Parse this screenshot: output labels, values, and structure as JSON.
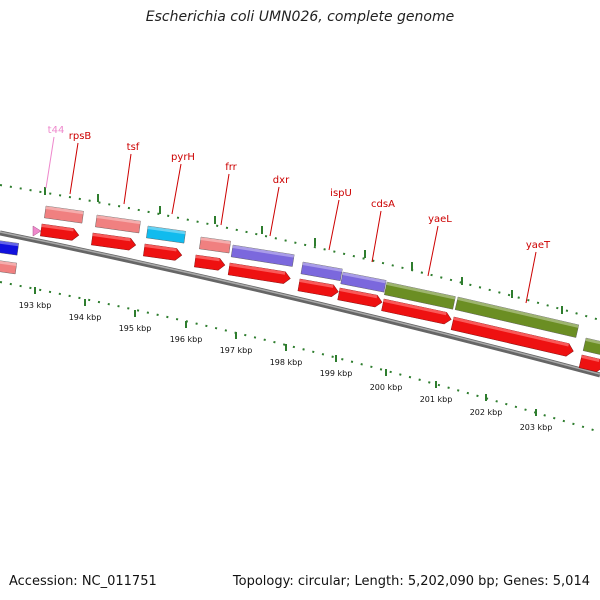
{
  "title": "Escherichia coli UMN026, complete genome",
  "accession": "Accession: NC_011751",
  "topology": "Topology: circular; Length: 5,202,090 bp; Genes: 5,014",
  "colors": {
    "cds": "#ee1111",
    "rrna_pink": "#f08080",
    "trna": "#ee88cc",
    "cyan": "#11bbee",
    "purple": "#7b68dd",
    "olive": "#6b8e23",
    "blue": "#1111dd",
    "ticks": "#2e7d2e",
    "label_red": "#cc0000",
    "label_pink": "#ee88cc"
  },
  "kbp_labels": [
    "193 kbp",
    "194 kbp",
    "195 kbp",
    "196 kbp",
    "197 kbp",
    "198 kbp",
    "199 kbp",
    "200 kbp",
    "201 kbp",
    "202 kbp",
    "203 kbp"
  ],
  "gene_labels": [
    {
      "name": "t44",
      "kind": "trna"
    },
    {
      "name": "rpsB",
      "kind": "cds"
    },
    {
      "name": "tsf",
      "kind": "cds"
    },
    {
      "name": "pyrH",
      "kind": "cds"
    },
    {
      "name": "frr",
      "kind": "cds"
    },
    {
      "name": "dxr",
      "kind": "cds"
    },
    {
      "name": "ispU",
      "kind": "cds"
    },
    {
      "name": "cdsA",
      "kind": "cds"
    },
    {
      "name": "yaeL",
      "kind": "cds"
    },
    {
      "name": "yaeT",
      "kind": "cds"
    }
  ]
}
